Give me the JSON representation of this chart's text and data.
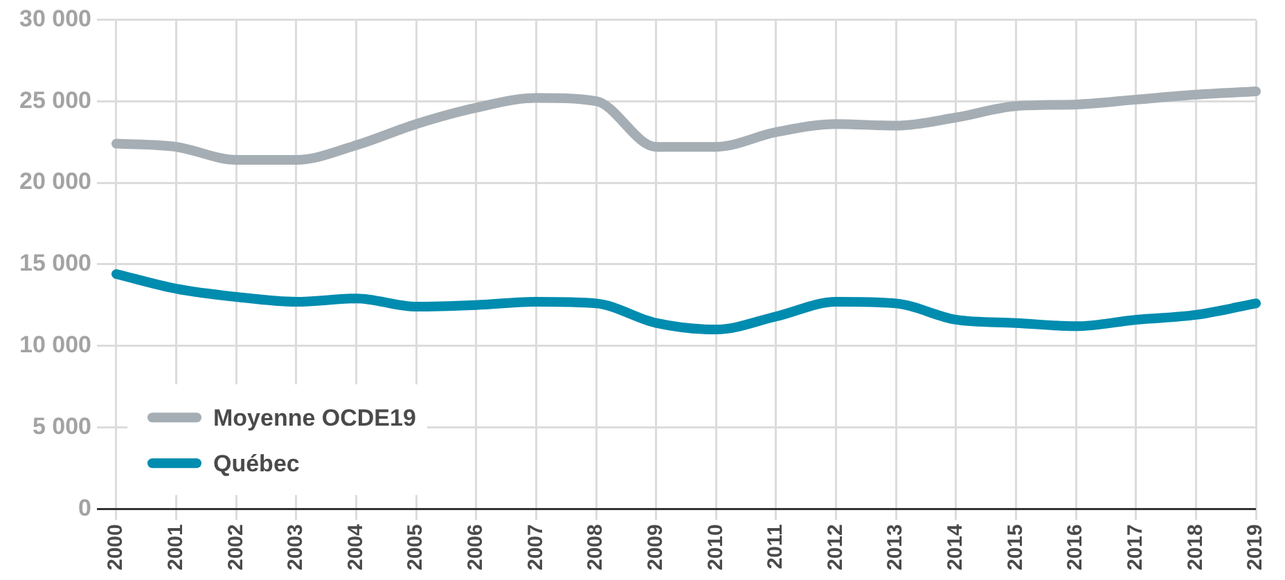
{
  "chart_data": {
    "type": "line",
    "categories": [
      "2000",
      "2001",
      "2002",
      "2003",
      "2004",
      "2005",
      "2006",
      "2007",
      "2008",
      "2009",
      "2010",
      "2011",
      "2012",
      "2013",
      "2014",
      "2015",
      "2016",
      "2017",
      "2018",
      "2019"
    ],
    "series": [
      {
        "name": "Moyenne OCDE19",
        "color": "#a5aeb4",
        "values": [
          22400,
          22200,
          21400,
          21400,
          22300,
          23600,
          24600,
          25200,
          25000,
          22200,
          22200,
          23100,
          23600,
          23500,
          24000,
          24700,
          24800,
          25100,
          25400,
          25600
        ]
      },
      {
        "name": "Québec",
        "color": "#008caf",
        "values": [
          14400,
          13500,
          13000,
          12700,
          12900,
          12400,
          12500,
          12700,
          12600,
          11400,
          11000,
          11800,
          12700,
          12600,
          11600,
          11400,
          11200,
          11600,
          11900,
          12600
        ]
      }
    ],
    "ylim": [
      0,
      30000
    ],
    "yticks": [
      {
        "value": 0,
        "label": "0"
      },
      {
        "value": 5000,
        "label": "5 000"
      },
      {
        "value": 10000,
        "label": "10 000"
      },
      {
        "value": 15000,
        "label": "15 000"
      },
      {
        "value": 20000,
        "label": "20 000"
      },
      {
        "value": 25000,
        "label": "25 000"
      },
      {
        "value": 30000,
        "label": "30 000"
      }
    ],
    "grid": true,
    "legend": "bottom left",
    "marker": "none",
    "line_style": "solid"
  }
}
